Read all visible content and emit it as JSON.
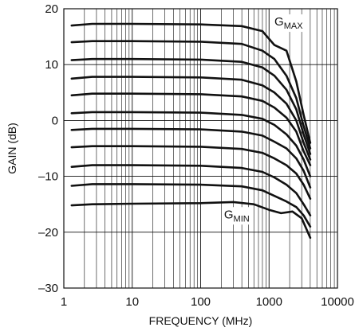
{
  "chart_data": {
    "type": "line",
    "title": "",
    "xlabel": "FREQUENCY (MHz)",
    "ylabel": "GAIN (dB)",
    "x_scale": "log",
    "xlim": [
      1,
      10000
    ],
    "ylim": [
      -30,
      20
    ],
    "grid": true,
    "x_ticks": [
      1,
      10,
      100,
      1000,
      10000
    ],
    "x_tick_labels": [
      "1",
      "10",
      "100",
      "1000",
      "10000"
    ],
    "y_ticks": [
      -30,
      -20,
      -10,
      0,
      10,
      20
    ],
    "y_tick_labels": [
      "–30",
      "–20",
      "–10",
      "0",
      "10",
      "20"
    ],
    "annotations": [
      {
        "text": "G",
        "sub": "MAX",
        "x": 1200,
        "y": 17
      },
      {
        "text": "G",
        "sub": "MIN",
        "x": 220,
        "y": -17.5
      }
    ],
    "series": [
      {
        "x": [
          1.3,
          2.6,
          10,
          100,
          400,
          800,
          1200,
          1800,
          2500,
          3200,
          4000
        ],
        "y": [
          17,
          17.3,
          17.3,
          17.2,
          16.9,
          16,
          13.5,
          12.5,
          7,
          1,
          -4
        ]
      },
      {
        "x": [
          1.3,
          2.6,
          10,
          100,
          400,
          800,
          1200,
          1800,
          2500,
          3200,
          4000
        ],
        "y": [
          14,
          14.2,
          14.2,
          14.1,
          13.7,
          12.5,
          11,
          8,
          4,
          -1,
          -5
        ]
      },
      {
        "x": [
          1.3,
          2.6,
          10,
          100,
          400,
          800,
          1200,
          1800,
          2500,
          3200,
          4000
        ],
        "y": [
          10.8,
          11,
          11,
          10.9,
          10.5,
          9.5,
          8,
          5.5,
          2,
          -2.5,
          -6
        ]
      },
      {
        "x": [
          1.3,
          2.6,
          10,
          100,
          400,
          800,
          1200,
          1800,
          2500,
          3200,
          4000
        ],
        "y": [
          7.5,
          7.8,
          7.8,
          7.7,
          7.3,
          6.3,
          5,
          3,
          0,
          -4,
          -7
        ]
      },
      {
        "x": [
          1.3,
          2.6,
          10,
          100,
          400,
          800,
          1200,
          1800,
          2500,
          3200,
          4000
        ],
        "y": [
          4.5,
          4.8,
          4.8,
          4.7,
          4.3,
          3.5,
          2.3,
          0.5,
          -2,
          -5.5,
          -8
        ]
      },
      {
        "x": [
          1.3,
          2.6,
          10,
          100,
          400,
          800,
          1200,
          1800,
          2500,
          3200,
          4000
        ],
        "y": [
          1.3,
          1.5,
          1.5,
          1.4,
          1,
          0.3,
          -0.8,
          -2.5,
          -4.5,
          -7,
          -10
        ]
      },
      {
        "x": [
          1.3,
          2.6,
          10,
          100,
          400,
          800,
          1200,
          1800,
          2500,
          3200,
          4000
        ],
        "y": [
          -1.7,
          -1.5,
          -1.5,
          -1.6,
          -2,
          -2.7,
          -3.8,
          -5,
          -6.8,
          -9,
          -12
        ]
      },
      {
        "x": [
          1.3,
          2.6,
          10,
          100,
          400,
          800,
          1200,
          1800,
          2500,
          3200,
          4000
        ],
        "y": [
          -4.8,
          -4.6,
          -4.6,
          -4.7,
          -5.1,
          -5.8,
          -6.8,
          -8,
          -9.5,
          -11.5,
          -14
        ]
      },
      {
        "x": [
          1.3,
          2.6,
          10,
          100,
          400,
          800,
          1200,
          1800,
          2500,
          3200,
          4000
        ],
        "y": [
          -8.3,
          -8,
          -8,
          -8.1,
          -8.5,
          -9.2,
          -10.2,
          -11.5,
          -13,
          -15,
          -17
        ]
      },
      {
        "x": [
          1.3,
          2.6,
          10,
          100,
          400,
          800,
          1200,
          1800,
          2500,
          3200,
          4000
        ],
        "y": [
          -11.7,
          -11.4,
          -11.4,
          -11.5,
          -11.8,
          -12.5,
          -13.5,
          -14.5,
          -15.5,
          -17,
          -19
        ]
      },
      {
        "x": [
          1.3,
          2.6,
          10,
          100,
          300,
          600,
          1000,
          1500,
          2200,
          3000,
          4000
        ],
        "y": [
          -15.2,
          -15,
          -14.9,
          -14.8,
          -14.6,
          -15,
          -16,
          -16.6,
          -16.3,
          -17.5,
          -21
        ]
      }
    ]
  },
  "colors": {
    "line": "#111111",
    "grid": "#111111",
    "background": "#ffffff"
  }
}
